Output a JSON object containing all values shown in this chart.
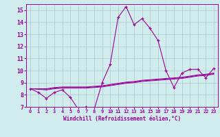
{
  "x": [
    0,
    1,
    2,
    3,
    4,
    5,
    6,
    7,
    8,
    9,
    10,
    11,
    12,
    13,
    14,
    15,
    16,
    17,
    18,
    19,
    20,
    21,
    22,
    23
  ],
  "windchill": [
    8.5,
    8.2,
    7.7,
    8.2,
    8.4,
    7.8,
    6.8,
    7.0,
    6.8,
    9.0,
    10.5,
    14.4,
    15.3,
    13.8,
    14.3,
    13.5,
    12.5,
    10.0,
    8.6,
    9.8,
    10.1,
    10.1,
    9.4,
    10.2
  ],
  "line1": [
    8.5,
    8.45,
    8.4,
    8.5,
    8.55,
    8.55,
    8.55,
    8.55,
    8.6,
    8.65,
    8.75,
    8.85,
    8.95,
    9.0,
    9.1,
    9.15,
    9.2,
    9.25,
    9.3,
    9.35,
    9.45,
    9.55,
    9.6,
    9.7
  ],
  "line2": [
    8.5,
    8.5,
    8.45,
    8.55,
    8.6,
    8.6,
    8.6,
    8.6,
    8.65,
    8.7,
    8.8,
    8.9,
    9.0,
    9.05,
    9.15,
    9.2,
    9.25,
    9.3,
    9.35,
    9.4,
    9.5,
    9.6,
    9.65,
    9.75
  ],
  "line3": [
    8.5,
    8.5,
    8.5,
    8.6,
    8.65,
    8.65,
    8.65,
    8.65,
    8.7,
    8.75,
    8.85,
    8.95,
    9.05,
    9.1,
    9.2,
    9.25,
    9.3,
    9.35,
    9.4,
    9.45,
    9.55,
    9.65,
    9.7,
    9.8
  ],
  "color": "#990099",
  "bg_color": "#d0ecec",
  "grid_color": "#b0c8c8",
  "ylim": [
    7,
    15.5
  ],
  "yticks": [
    7,
    8,
    9,
    10,
    11,
    12,
    13,
    14,
    15
  ],
  "xlabel": "Windchill (Refroidissement éolien,°C)"
}
